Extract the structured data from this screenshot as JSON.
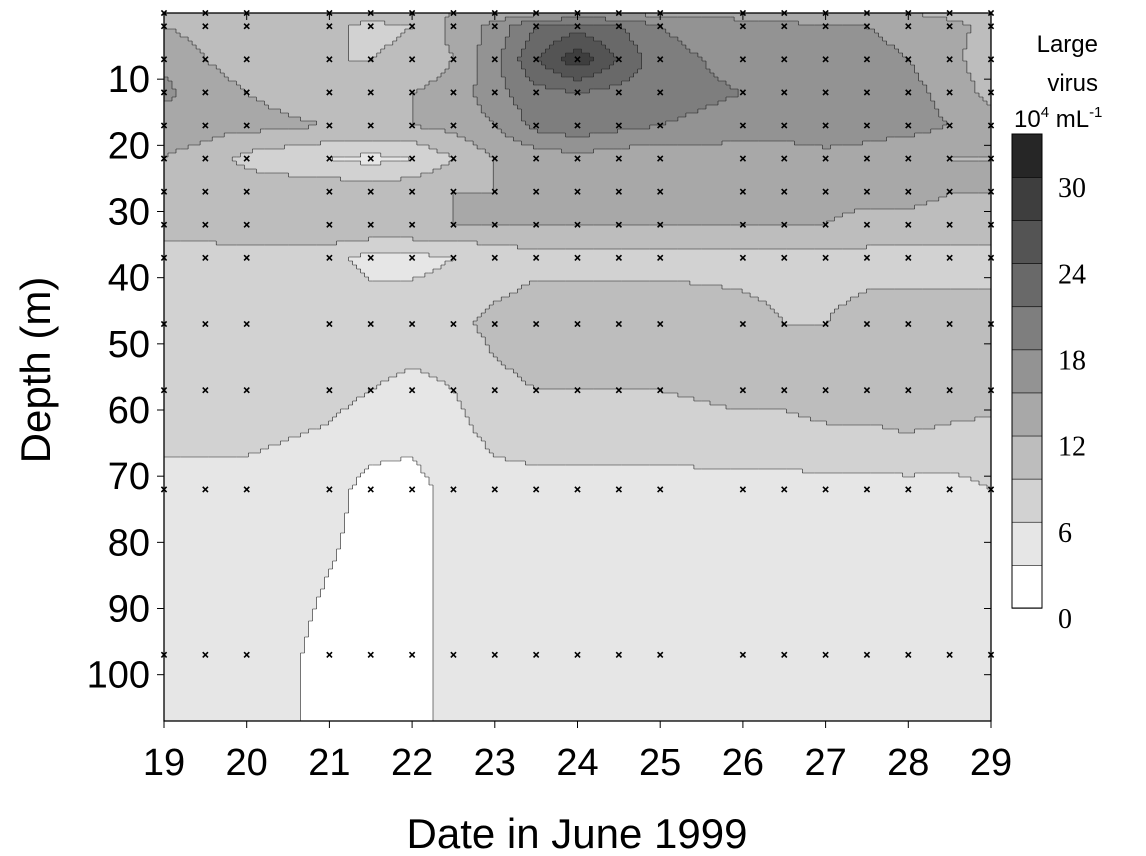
{
  "chart_data": {
    "type": "heatmap",
    "subtype": "filled-contour",
    "xlabel": "Date in June 1999",
    "ylabel": "Depth (m)",
    "x_ticks": [
      "19",
      "20",
      "21",
      "22",
      "23",
      "24",
      "25",
      "26",
      "27",
      "28",
      "29"
    ],
    "y_ticks": [
      "10",
      "20",
      "30",
      "40",
      "50",
      "60",
      "70",
      "80",
      "90",
      "100"
    ],
    "xlim": [
      19,
      29
    ],
    "ylim": [
      107,
      0
    ],
    "colorbar": {
      "title_line1": "Large",
      "title_line2": "virus",
      "title_unit_base": "10",
      "title_unit_exp": "4",
      "title_unit_mid": " mL",
      "title_unit_exp2": "-1",
      "tick_labels": [
        "0",
        "6",
        "12",
        "18",
        "24",
        "30"
      ],
      "levels": [
        0,
        3,
        6,
        9,
        12,
        15,
        18,
        21,
        24,
        27,
        30,
        33
      ],
      "colors": [
        "#ffffff",
        "#e6e6e6",
        "#d2d2d2",
        "#bdbdbd",
        "#a8a8a8",
        "#939393",
        "#7e7e7e",
        "#696969",
        "#545454",
        "#3e3e3e",
        "#262626"
      ]
    },
    "sample_days": [
      19.0,
      19.5,
      20.0,
      21.0,
      21.5,
      22.0,
      22.5,
      23.0,
      23.5,
      24.0,
      24.5,
      25.0,
      26.0,
      26.5,
      27.0,
      27.5,
      28.0,
      28.5,
      29.0
    ],
    "sample_depths": [
      0,
      2,
      7,
      12,
      17,
      22,
      27,
      32,
      37,
      47,
      57,
      72,
      97
    ],
    "values_1e4_per_mL": [
      [
        12,
        11,
        10,
        10,
        11,
        11,
        12,
        13,
        14,
        15,
        15,
        14,
        14,
        13,
        13,
        12,
        12,
        11,
        11
      ],
      [
        12,
        11,
        10,
        10,
        8,
        9,
        13,
        16,
        21,
        23,
        21,
        18,
        16,
        16,
        15,
        15,
        14,
        13,
        11
      ],
      [
        14,
        12,
        11,
        9,
        9,
        10,
        12,
        17,
        24,
        29,
        24,
        19,
        17,
        17,
        16,
        16,
        15,
        13,
        10
      ],
      [
        16,
        13,
        12,
        10,
        11,
        12,
        13,
        17,
        20,
        21,
        20,
        19,
        18,
        18,
        17,
        17,
        16,
        14,
        11
      ],
      [
        13,
        13,
        13,
        12,
        12,
        12,
        13,
        15,
        19,
        20,
        19,
        18,
        17,
        17,
        17,
        16,
        16,
        15,
        13
      ],
      [
        12,
        11,
        8,
        6,
        5,
        6,
        9,
        12,
        13,
        14,
        13,
        13,
        13,
        13,
        14,
        14,
        13,
        12,
        12
      ],
      [
        12,
        12,
        11,
        11,
        11,
        11,
        12,
        12,
        12,
        12,
        12,
        12,
        13,
        13,
        13,
        13,
        13,
        12,
        12
      ],
      [
        10,
        10,
        11,
        12,
        12,
        12,
        12,
        12,
        12,
        12,
        12,
        12,
        12,
        12,
        12,
        11,
        11,
        11,
        11
      ],
      [
        8,
        8,
        8,
        7,
        5,
        5,
        6,
        7,
        8,
        8,
        8,
        8,
        8,
        8,
        8,
        8,
        8,
        8,
        8
      ],
      [
        8,
        8,
        8,
        7,
        8,
        8,
        8,
        10,
        11,
        11,
        11,
        11,
        10,
        9,
        9,
        10,
        10,
        10,
        10
      ],
      [
        8,
        8,
        8,
        7,
        6,
        5,
        6,
        8,
        9,
        9,
        9,
        9,
        10,
        10,
        11,
        11,
        12,
        11,
        10
      ],
      [
        5,
        5,
        5,
        4,
        2,
        2,
        4,
        5,
        5,
        5,
        5,
        5,
        5,
        5,
        5,
        5,
        5,
        5,
        6
      ],
      [
        5,
        5,
        5,
        2,
        2,
        2,
        4,
        5,
        5,
        5,
        5,
        5,
        5,
        5,
        5,
        5,
        5,
        5,
        5
      ]
    ]
  }
}
